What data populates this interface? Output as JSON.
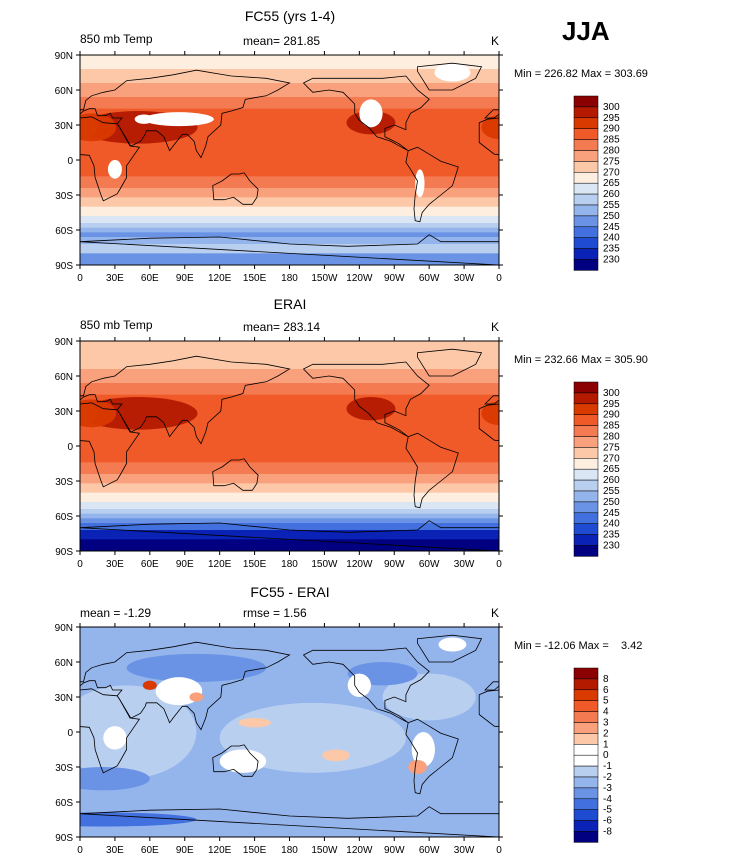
{
  "figure": {
    "season": "JJA",
    "unit": "K"
  },
  "chart_data": [
    {
      "type": "heatmap",
      "title": "FC55 (yrs 1-4)",
      "subtitle_left": "850 mb Temp",
      "subtitle_center": "mean= 281.85",
      "units": "K",
      "min_max": "Min = 226.82 Max = 303.69",
      "min": 226.82,
      "max": 303.69,
      "mean": 281.85,
      "xticks": [
        "0",
        "30E",
        "60E",
        "90E",
        "120E",
        "150E",
        "180",
        "150W",
        "120W",
        "90W",
        "60W",
        "30W",
        "0"
      ],
      "yticks": [
        "90N",
        "60N",
        "30N",
        "0",
        "30S",
        "60S",
        "90S"
      ],
      "xlim": [
        0,
        360
      ],
      "ylim": [
        -90,
        90
      ],
      "colorbar": {
        "levels": [
          "300",
          "295",
          "290",
          "285",
          "280",
          "275",
          "270",
          "265",
          "260",
          "255",
          "250",
          "245",
          "240",
          "235",
          "230"
        ],
        "colors": [
          "#8b0000",
          "#b31a00",
          "#d93a00",
          "#ef5a28",
          "#f47a52",
          "#f9a07c",
          "#fcc8a8",
          "#fdeee0",
          "#dbe6f5",
          "#b9cff0",
          "#94b4ec",
          "#6b93e5",
          "#4270df",
          "#1f4bd3",
          "#0a22b5",
          "#000080"
        ]
      }
    },
    {
      "type": "heatmap",
      "title": "ERAI",
      "subtitle_left": "850 mb Temp",
      "subtitle_center": "mean= 283.14",
      "units": "K",
      "min_max": "Min = 232.66 Max = 305.90",
      "min": 232.66,
      "max": 305.9,
      "mean": 283.14,
      "xticks": [
        "0",
        "30E",
        "60E",
        "90E",
        "120E",
        "150E",
        "180",
        "150W",
        "120W",
        "90W",
        "60W",
        "30W",
        "0"
      ],
      "yticks": [
        "90N",
        "60N",
        "30N",
        "0",
        "30S",
        "60S",
        "90S"
      ],
      "xlim": [
        0,
        360
      ],
      "ylim": [
        -90,
        90
      ],
      "colorbar": {
        "levels": [
          "300",
          "295",
          "290",
          "285",
          "280",
          "275",
          "270",
          "265",
          "260",
          "255",
          "250",
          "245",
          "240",
          "235",
          "230"
        ],
        "colors": [
          "#8b0000",
          "#b31a00",
          "#d93a00",
          "#ef5a28",
          "#f47a52",
          "#f9a07c",
          "#fcc8a8",
          "#fdeee0",
          "#dbe6f5",
          "#b9cff0",
          "#94b4ec",
          "#6b93e5",
          "#4270df",
          "#1f4bd3",
          "#0a22b5",
          "#000080"
        ]
      }
    },
    {
      "type": "heatmap",
      "title": "FC55 - ERAI",
      "subtitle_left": "mean =   -1.29",
      "subtitle_center": "rmse =    1.56",
      "units": "K",
      "min_max": "Min = -12.06 Max =    3.42",
      "min": -12.06,
      "max": 3.42,
      "mean": -1.29,
      "rmse": 1.56,
      "xticks": [
        "0",
        "30E",
        "60E",
        "90E",
        "120E",
        "150E",
        "180",
        "150W",
        "120W",
        "90W",
        "60W",
        "30W",
        "0"
      ],
      "yticks": [
        "90N",
        "60N",
        "30N",
        "0",
        "30S",
        "60S",
        "90S"
      ],
      "xlim": [
        0,
        360
      ],
      "ylim": [
        -90,
        90
      ],
      "colorbar": {
        "levels": [
          "8",
          "6",
          "5",
          "4",
          "3",
          "2",
          "1",
          "0",
          "-1",
          "-2",
          "-3",
          "-4",
          "-5",
          "-6",
          "-8"
        ],
        "colors": [
          "#8b0000",
          "#b31a00",
          "#d93a00",
          "#ef5a28",
          "#f47a52",
          "#f9a07c",
          "#fcc8a8",
          "#ffffff",
          "#ffffff",
          "#b9cff0",
          "#94b4ec",
          "#6b93e5",
          "#4270df",
          "#1f4bd3",
          "#0a22b5",
          "#000080"
        ]
      }
    }
  ]
}
